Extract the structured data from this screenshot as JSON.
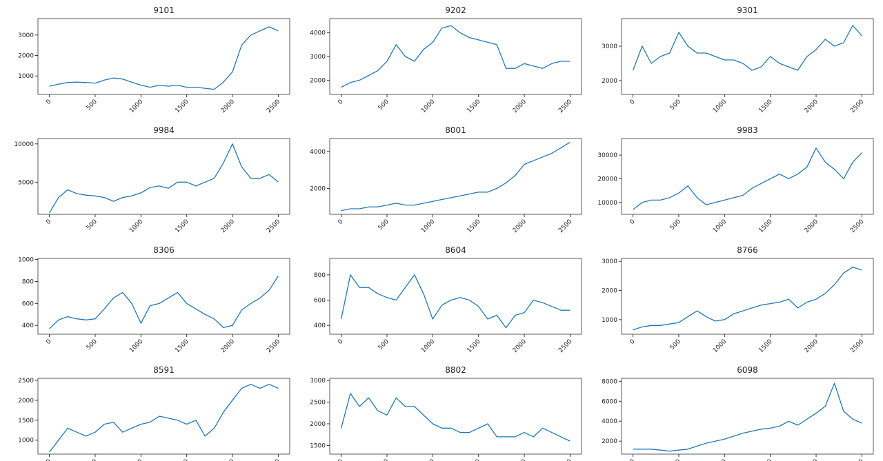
{
  "chart_data": [
    {
      "type": "line",
      "title": "9101",
      "color": "#1f77b4",
      "xlim": [
        -125,
        2625
      ],
      "xticks": [
        0,
        500,
        1000,
        1500,
        2000,
        2500
      ],
      "ylim": [
        100,
        3800
      ],
      "yticks": [
        1000,
        2000,
        3000
      ],
      "x": [
        0,
        100,
        200,
        300,
        400,
        500,
        600,
        700,
        800,
        900,
        1000,
        1100,
        1200,
        1300,
        1400,
        1500,
        1600,
        1700,
        1800,
        1900,
        2000,
        2100,
        2200,
        2300,
        2400,
        2500
      ],
      "values": [
        500,
        600,
        680,
        700,
        680,
        650,
        800,
        900,
        850,
        700,
        550,
        450,
        550,
        500,
        550,
        450,
        450,
        400,
        350,
        700,
        1200,
        2500,
        3000,
        3200,
        3400,
        3200
      ]
    },
    {
      "type": "line",
      "title": "9202",
      "color": "#1f77b4",
      "xlim": [
        -125,
        2625
      ],
      "xticks": [
        0,
        500,
        1000,
        1500,
        2000,
        2500
      ],
      "ylim": [
        1400,
        4600
      ],
      "yticks": [
        2000,
        3000,
        4000
      ],
      "x": [
        0,
        100,
        200,
        300,
        400,
        500,
        600,
        700,
        800,
        900,
        1000,
        1100,
        1200,
        1300,
        1400,
        1500,
        1600,
        1700,
        1800,
        1900,
        2000,
        2100,
        2200,
        2300,
        2400,
        2500
      ],
      "values": [
        1700,
        1900,
        2000,
        2200,
        2400,
        2800,
        3500,
        3000,
        2800,
        3300,
        3600,
        4200,
        4300,
        4000,
        3800,
        3700,
        3600,
        3500,
        2500,
        2500,
        2700,
        2600,
        2500,
        2700,
        2800,
        2800
      ]
    },
    {
      "type": "line",
      "title": "9301",
      "color": "#1f77b4",
      "xlim": [
        -125,
        2625
      ],
      "xticks": [
        0,
        500,
        1000,
        1500,
        2000,
        2500
      ],
      "ylim": [
        1600,
        3800
      ],
      "yticks": [
        2000,
        3000
      ],
      "x": [
        0,
        100,
        200,
        300,
        400,
        500,
        600,
        700,
        800,
        900,
        1000,
        1100,
        1200,
        1300,
        1400,
        1500,
        1600,
        1700,
        1800,
        1900,
        2000,
        2100,
        2200,
        2300,
        2400,
        2500
      ],
      "values": [
        2300,
        3000,
        2500,
        2700,
        2800,
        3400,
        3000,
        2800,
        2800,
        2700,
        2600,
        2600,
        2500,
        2300,
        2400,
        2700,
        2500,
        2400,
        2300,
        2700,
        2900,
        3200,
        3000,
        3100,
        3600,
        3300
      ]
    },
    {
      "type": "line",
      "title": "9984",
      "color": "#1f77b4",
      "xlim": [
        -125,
        2625
      ],
      "xticks": [
        0,
        500,
        1000,
        1500,
        2000,
        2500
      ],
      "ylim": [
        800,
        10700
      ],
      "yticks": [
        5000,
        10000
      ],
      "x": [
        0,
        100,
        200,
        300,
        400,
        500,
        600,
        700,
        800,
        900,
        1000,
        1100,
        1200,
        1300,
        1400,
        1500,
        1600,
        1700,
        1800,
        1900,
        2000,
        2100,
        2200,
        2300,
        2400,
        2500
      ],
      "values": [
        1000,
        3000,
        4000,
        3500,
        3300,
        3200,
        3000,
        2500,
        3000,
        3200,
        3600,
        4300,
        4500,
        4200,
        5000,
        5000,
        4500,
        5000,
        5500,
        7500,
        10000,
        7000,
        5500,
        5500,
        6000,
        5000
      ]
    },
    {
      "type": "line",
      "title": "8001",
      "color": "#1f77b4",
      "xlim": [
        -125,
        2625
      ],
      "xticks": [
        0,
        500,
        1000,
        1500,
        2000,
        2500
      ],
      "ylim": [
        600,
        4700
      ],
      "yticks": [
        2000,
        4000
      ],
      "x": [
        0,
        100,
        200,
        300,
        400,
        500,
        600,
        700,
        800,
        900,
        1000,
        1100,
        1200,
        1300,
        1400,
        1500,
        1600,
        1700,
        1800,
        1900,
        2000,
        2100,
        2200,
        2300,
        2400,
        2500
      ],
      "values": [
        800,
        900,
        900,
        1000,
        1000,
        1100,
        1200,
        1100,
        1100,
        1200,
        1300,
        1400,
        1500,
        1600,
        1700,
        1800,
        1800,
        2000,
        2300,
        2700,
        3300,
        3500,
        3700,
        3900,
        4200,
        4500
      ]
    },
    {
      "type": "line",
      "title": "9983",
      "color": "#1f77b4",
      "xlim": [
        -125,
        2625
      ],
      "xticks": [
        0,
        500,
        1000,
        1500,
        2000,
        2500
      ],
      "ylim": [
        5000,
        37000
      ],
      "yticks": [
        10000,
        20000,
        30000
      ],
      "x": [
        0,
        100,
        200,
        300,
        400,
        500,
        600,
        700,
        800,
        900,
        1000,
        1100,
        1200,
        1300,
        1400,
        1500,
        1600,
        1700,
        1800,
        1900,
        2000,
        2100,
        2200,
        2300,
        2400,
        2500
      ],
      "values": [
        7000,
        10000,
        11000,
        11000,
        12000,
        14000,
        17000,
        12000,
        9000,
        10000,
        11000,
        12000,
        13000,
        16000,
        18000,
        20000,
        22000,
        20000,
        22000,
        25000,
        33000,
        27000,
        24000,
        20000,
        27000,
        31000
      ]
    },
    {
      "type": "line",
      "title": "8306",
      "color": "#1f77b4",
      "xlim": [
        -125,
        2625
      ],
      "xticks": [
        0,
        500,
        1000,
        1500,
        2000,
        2500
      ],
      "ylim": [
        320,
        1010
      ],
      "yticks": [
        400,
        600,
        800,
        1000
      ],
      "x": [
        0,
        100,
        200,
        300,
        400,
        500,
        600,
        700,
        800,
        900,
        1000,
        1100,
        1200,
        1300,
        1400,
        1500,
        1600,
        1700,
        1800,
        1900,
        2000,
        2100,
        2200,
        2300,
        2400,
        2500
      ],
      "values": [
        370,
        450,
        480,
        460,
        450,
        460,
        550,
        650,
        700,
        600,
        420,
        580,
        600,
        650,
        700,
        600,
        550,
        500,
        460,
        380,
        400,
        540,
        600,
        650,
        720,
        850
      ]
    },
    {
      "type": "line",
      "title": "8604",
      "color": "#1f77b4",
      "xlim": [
        -125,
        2625
      ],
      "xticks": [
        0,
        500,
        1000,
        1500,
        2000,
        2500
      ],
      "ylim": [
        330,
        930
      ],
      "yticks": [
        400,
        600,
        800
      ],
      "x": [
        0,
        100,
        200,
        300,
        400,
        500,
        600,
        700,
        800,
        900,
        1000,
        1100,
        1200,
        1300,
        1400,
        1500,
        1600,
        1700,
        1800,
        1900,
        2000,
        2100,
        2200,
        2300,
        2400,
        2500
      ],
      "values": [
        450,
        800,
        700,
        700,
        650,
        620,
        600,
        700,
        800,
        650,
        450,
        560,
        600,
        620,
        600,
        550,
        450,
        480,
        380,
        480,
        500,
        600,
        580,
        550,
        520,
        520
      ]
    },
    {
      "type": "line",
      "title": "8766",
      "color": "#1f77b4",
      "xlim": [
        -125,
        2625
      ],
      "xticks": [
        0,
        500,
        1000,
        1500,
        2000,
        2500
      ],
      "ylim": [
        500,
        3100
      ],
      "yticks": [
        1000,
        2000,
        3000
      ],
      "x": [
        0,
        100,
        200,
        300,
        400,
        500,
        600,
        700,
        800,
        900,
        1000,
        1100,
        1200,
        1300,
        1400,
        1500,
        1600,
        1700,
        1800,
        1900,
        2000,
        2100,
        2200,
        2300,
        2400,
        2500
      ],
      "values": [
        650,
        750,
        800,
        800,
        850,
        900,
        1100,
        1300,
        1100,
        950,
        1000,
        1200,
        1300,
        1400,
        1500,
        1550,
        1600,
        1700,
        1400,
        1600,
        1700,
        1900,
        2200,
        2600,
        2800,
        2700
      ]
    },
    {
      "type": "line",
      "title": "8591",
      "color": "#1f77b4",
      "xlim": [
        -125,
        2625
      ],
      "xticks": [
        0,
        500,
        1000,
        1500,
        2000,
        2500
      ],
      "ylim": [
        650,
        2550
      ],
      "yticks": [
        1000,
        1500,
        2000,
        2500
      ],
      "x": [
        0,
        100,
        200,
        300,
        400,
        500,
        600,
        700,
        800,
        900,
        1000,
        1100,
        1200,
        1300,
        1400,
        1500,
        1600,
        1700,
        1800,
        1900,
        2000,
        2100,
        2200,
        2300,
        2400,
        2500
      ],
      "values": [
        700,
        1000,
        1300,
        1200,
        1100,
        1200,
        1400,
        1450,
        1200,
        1300,
        1400,
        1450,
        1600,
        1550,
        1500,
        1400,
        1500,
        1100,
        1300,
        1700,
        2000,
        2300,
        2400,
        2300,
        2400,
        2300
      ]
    },
    {
      "type": "line",
      "title": "8802",
      "color": "#1f77b4",
      "xlim": [
        -125,
        2625
      ],
      "xticks": [
        0,
        500,
        1000,
        1500,
        2000,
        2500
      ],
      "ylim": [
        1300,
        3050
      ],
      "yticks": [
        1500,
        2000,
        2500,
        3000
      ],
      "x": [
        0,
        100,
        200,
        300,
        400,
        500,
        600,
        700,
        800,
        900,
        1000,
        1100,
        1200,
        1300,
        1400,
        1500,
        1600,
        1700,
        1800,
        1900,
        2000,
        2100,
        2200,
        2300,
        2400,
        2500
      ],
      "values": [
        1900,
        2700,
        2400,
        2600,
        2300,
        2200,
        2600,
        2400,
        2400,
        2200,
        2000,
        1900,
        1900,
        1800,
        1800,
        1900,
        2000,
        1700,
        1700,
        1700,
        1800,
        1700,
        1900,
        1800,
        1700,
        1600
      ]
    },
    {
      "type": "line",
      "title": "6098",
      "color": "#1f77b4",
      "xlim": [
        -125,
        2625
      ],
      "xticks": [
        0,
        500,
        1000,
        1500,
        2000,
        2500
      ],
      "ylim": [
        700,
        8300
      ],
      "yticks": [
        2000,
        4000,
        6000,
        8000
      ],
      "x": [
        0,
        100,
        200,
        300,
        400,
        500,
        600,
        700,
        800,
        900,
        1000,
        1100,
        1200,
        1300,
        1400,
        1500,
        1600,
        1700,
        1800,
        1900,
        2000,
        2100,
        2200,
        2300,
        2400,
        2500
      ],
      "values": [
        1200,
        1200,
        1200,
        1100,
        1000,
        1100,
        1200,
        1500,
        1800,
        2000,
        2200,
        2500,
        2800,
        3000,
        3200,
        3300,
        3500,
        4000,
        3600,
        4200,
        4800,
        5500,
        7800,
        5000,
        4200,
        3800
      ]
    }
  ]
}
